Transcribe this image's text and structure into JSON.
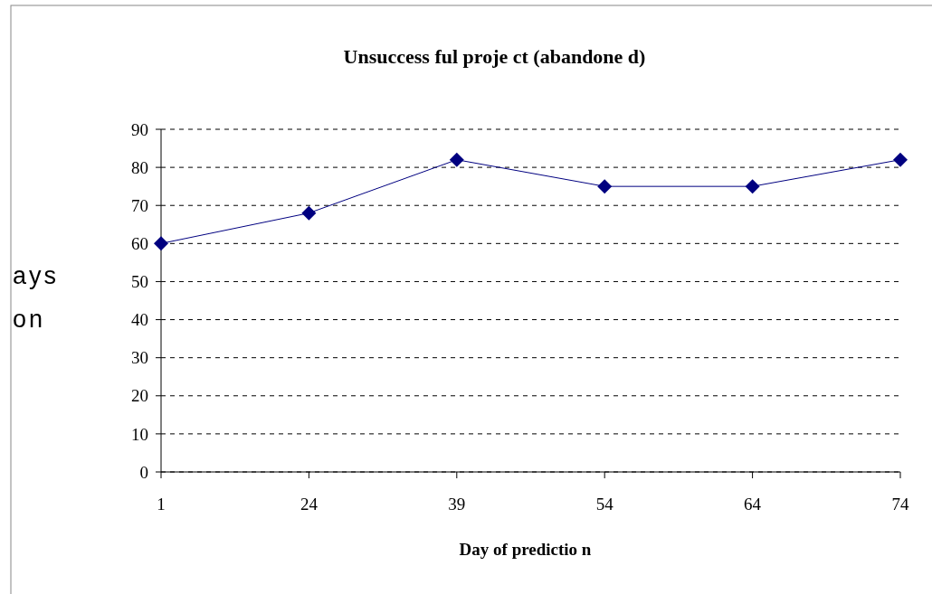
{
  "chart_data": {
    "type": "line",
    "title": "Unsuccess ful proje ct (abandone d)",
    "xlabel": "Day of predictio n",
    "ylabel": "ays\non",
    "categories": [
      "1",
      "24",
      "39",
      "54",
      "64",
      "74"
    ],
    "series": [
      {
        "color": "#000080",
        "values": [
          60,
          68,
          82,
          75,
          75,
          82
        ]
      }
    ],
    "ylim": [
      0,
      90
    ],
    "yticks": [
      0,
      10,
      20,
      30,
      40,
      50,
      60,
      70,
      80,
      90
    ],
    "grid": "y",
    "marker": "diamond",
    "line_style": "solid"
  }
}
